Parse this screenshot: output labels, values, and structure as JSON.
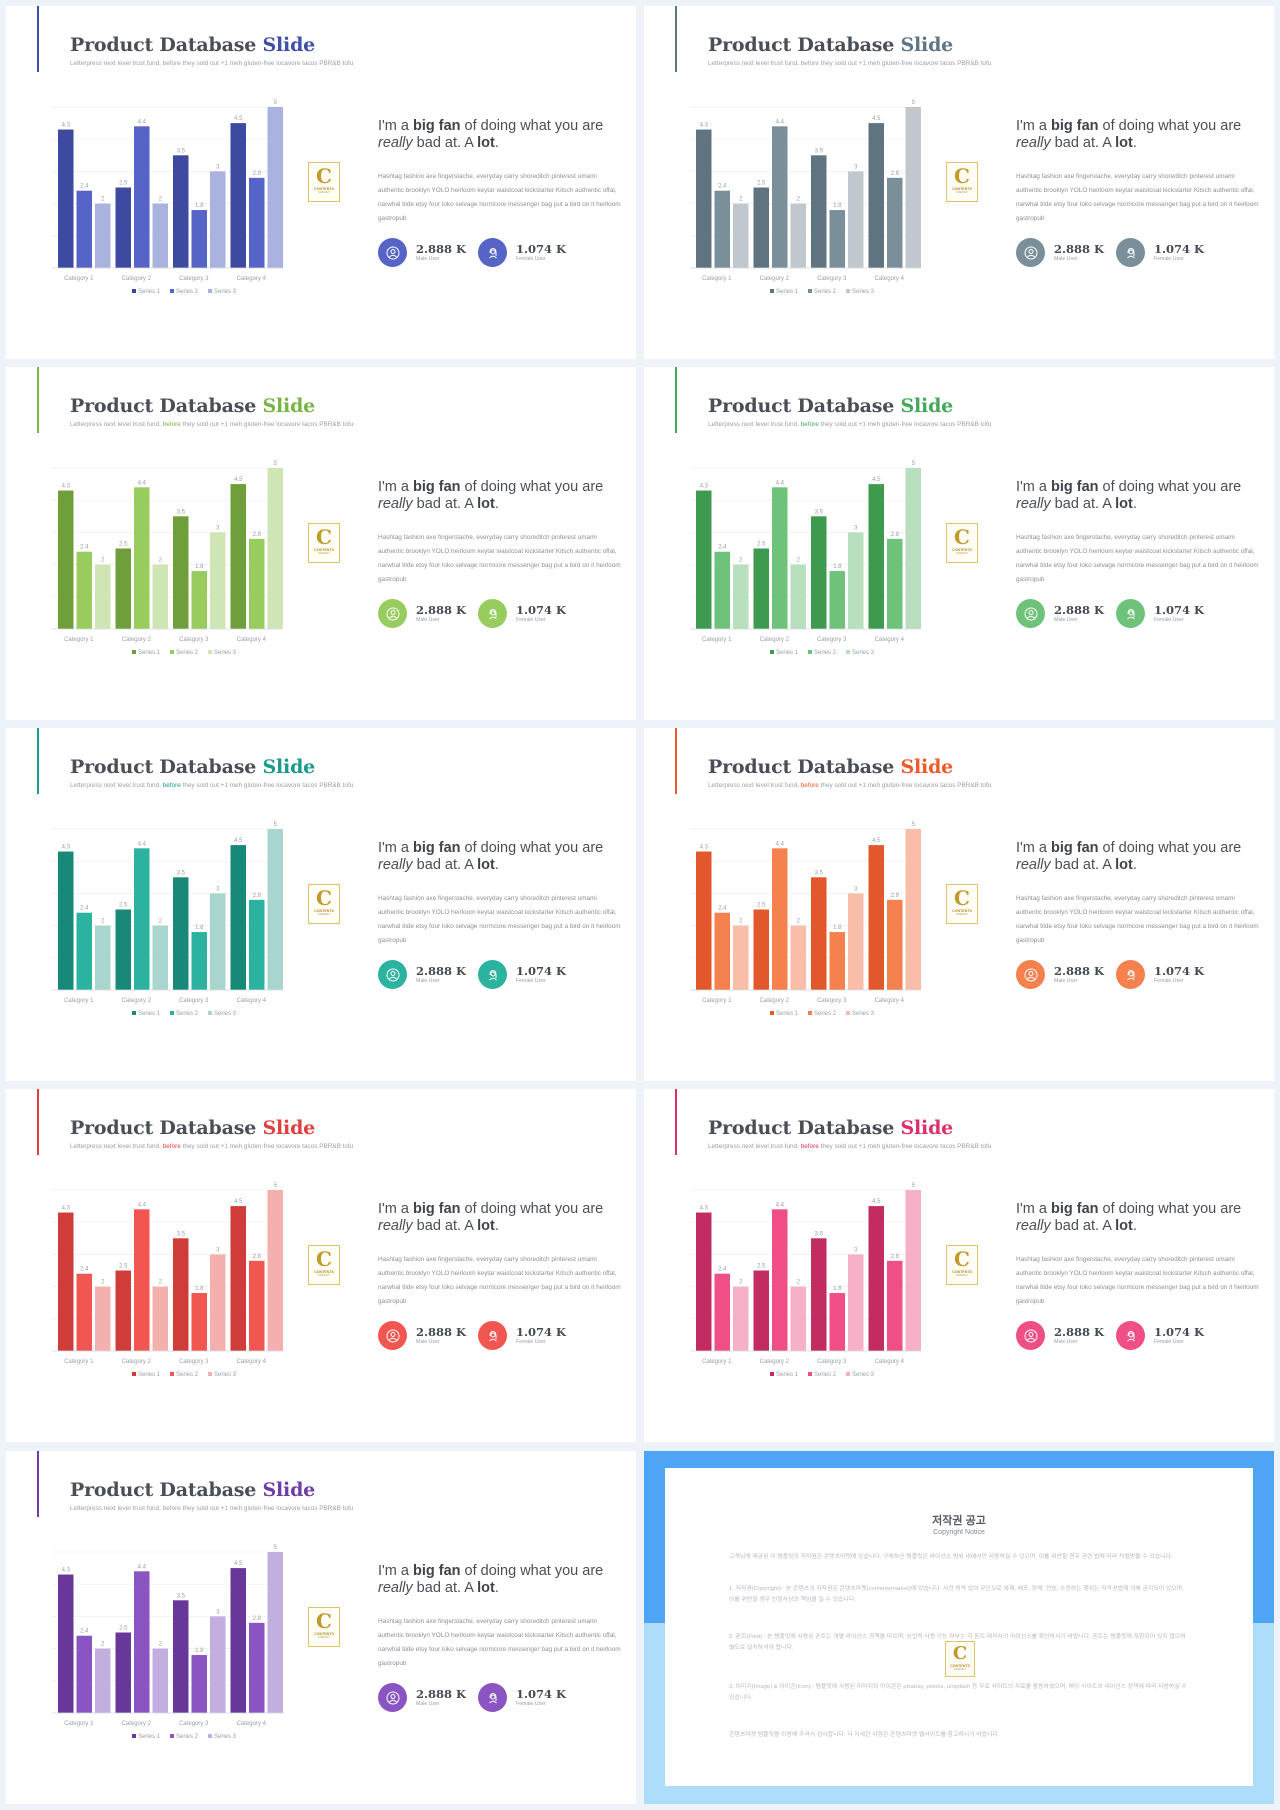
{
  "slide_common": {
    "title_main": "Product Database",
    "title_accent": "Slide",
    "subtitle_before": "Letterpress next level trust fund,",
    "subtitle_accent": "before",
    "subtitle_after": "they sold out +1 meh gluten-free locavore tacos PBR&B tofu",
    "headline_1": "I'm a ",
    "headline_bold_1": "big fan",
    "headline_2": " of doing what you are ",
    "headline_italic": "really",
    "headline_3": " bad at. A ",
    "headline_bold_2": "lot",
    "headline_4": ".",
    "body": "Hashtag fashion axe fingerstache, everyday carry shoreditch pinterest umami authentic brooklyn YOLO heirloom keytar waistcoat kickstarter Kitsch authentic offal, narwhal tilde etsy four loko selvage normcore messenger bag put a bird on it heirloom gastropub",
    "male_value": "2.888 K",
    "male_label": "Male User",
    "female_value": "1.074 K",
    "female_label": "Female User",
    "logo_letter": "C",
    "logo_line1": "CONTENTS",
    "logo_line2": "MARKET"
  },
  "chart_data": {
    "type": "bar",
    "categories": [
      "Category 1",
      "Category 2",
      "Category 3",
      "Category 4"
    ],
    "series": [
      {
        "name": "Series 1",
        "values": [
          4.3,
          2.5,
          3.5,
          4.5
        ]
      },
      {
        "name": "Series 2",
        "values": [
          2.4,
          4.4,
          1.8,
          2.8
        ]
      },
      {
        "name": "Series 3",
        "values": [
          2,
          2,
          3,
          5
        ]
      }
    ],
    "ylim": [
      0,
      5
    ],
    "grid": true,
    "legend": "bottom"
  },
  "themes": [
    {
      "name": "blue",
      "accent": "#3f4ea8",
      "series_colors": [
        "#3d4aa0",
        "#5664c8",
        "#aab2e0"
      ],
      "subtitle_accent": "#9aa0a8"
    },
    {
      "name": "slate",
      "accent": "#5f7584",
      "series_colors": [
        "#5f7480",
        "#7b8f9b",
        "#c0c8cd"
      ],
      "subtitle_accent": "#9aa0a8"
    },
    {
      "name": "lime",
      "accent": "#79b545",
      "series_colors": [
        "#6e9f3a",
        "#98cc5e",
        "#cfe6b4"
      ],
      "subtitle_accent": "#79b545"
    },
    {
      "name": "green",
      "accent": "#46a85a",
      "series_colors": [
        "#3d9a4e",
        "#6ec27a",
        "#b8dfbe"
      ],
      "subtitle_accent": "#46a85a"
    },
    {
      "name": "teal",
      "accent": "#1a9a8a",
      "series_colors": [
        "#188978",
        "#2bb3a0",
        "#a8d6cf"
      ],
      "subtitle_accent": "#1a9a8a"
    },
    {
      "name": "orange",
      "accent": "#ee5a2a",
      "series_colors": [
        "#e2572b",
        "#f5814f",
        "#f9bea8"
      ],
      "subtitle_accent": "#ee5a2a"
    },
    {
      "name": "red",
      "accent": "#e0403d",
      "series_colors": [
        "#cf3c3a",
        "#f15650",
        "#f4b0ac"
      ],
      "subtitle_accent": "#e0403d"
    },
    {
      "name": "pink",
      "accent": "#dd2f6a",
      "series_colors": [
        "#c32c62",
        "#ef4e86",
        "#f6b0c8"
      ],
      "subtitle_accent": "#dd2f6a"
    },
    {
      "name": "purple",
      "accent": "#6f3ca8",
      "series_colors": [
        "#67389a",
        "#8a55c2",
        "#c3aee0"
      ],
      "subtitle_accent": "#9aa0a8"
    }
  ],
  "notice": {
    "title": "저작권 공고",
    "subtitle": "Copyright Notice",
    "para_1": "고객님께 제공된 이 템플릿의 저작권은 콘텐츠마켓에 있습니다. 구매하신 템플릿은 라이선스 범위 내에서만 사용하실 수 있으며, 이를 위반할 경우 관련 법에 따라 처벌받을 수 있습니다.",
    "para_2": "1. 저작권(Copyright) : 본 콘텐츠의 저작권은 콘텐츠마켓(contentsmarket)에 있습니다. 사전 허락 없이 무단으로 복제, 배포, 판매, 전송, 수정하는 행위는 저작권법에 의해 금지되어 있으며, 이를 위반할 경우 민형사상의 책임을 질 수 있습니다.",
    "para_3": "2. 폰트(Font) : 본 템플릿에 사용된 폰트는 개별 라이선스 정책을 따르며, 상업적 사용 가능 여부는 각 폰트 제작사의 라이선스를 확인하시기 바랍니다. 폰트는 템플릿에 포함되어 있지 않으며 별도로 설치하셔야 합니다.",
    "para_4": "3. 이미지(Image) & 아이콘(Icon) : 템플릿에 사용된 이미지와 아이콘은 pixabay, pexels, unsplash 등 무료 사이트의 자료를 활용하였으며, 해당 사이트의 라이선스 정책에 따라 사용하실 수 있습니다.",
    "para_5": "콘텐츠마켓 템플릿을 이용해 주셔서 감사합니다. 더 자세한 사항은 콘텐츠마켓 웹사이트를 참고하시기 바랍니다."
  }
}
